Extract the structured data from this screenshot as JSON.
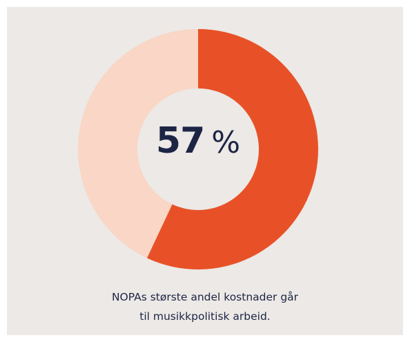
{
  "chart_data": {
    "type": "pie",
    "variant": "donut",
    "slices": [
      {
        "value": 57,
        "color": "#e85127"
      },
      {
        "value": 43,
        "color": "#f9d6c6"
      }
    ],
    "center_label": {
      "value": "57",
      "unit": "%"
    },
    "caption": {
      "line1": "NOPAs største andel kostnader går",
      "line2": "til musikkpolitisk arbeid."
    }
  },
  "colors": {
    "background": "#ece9e6",
    "text": "#1d2545"
  }
}
